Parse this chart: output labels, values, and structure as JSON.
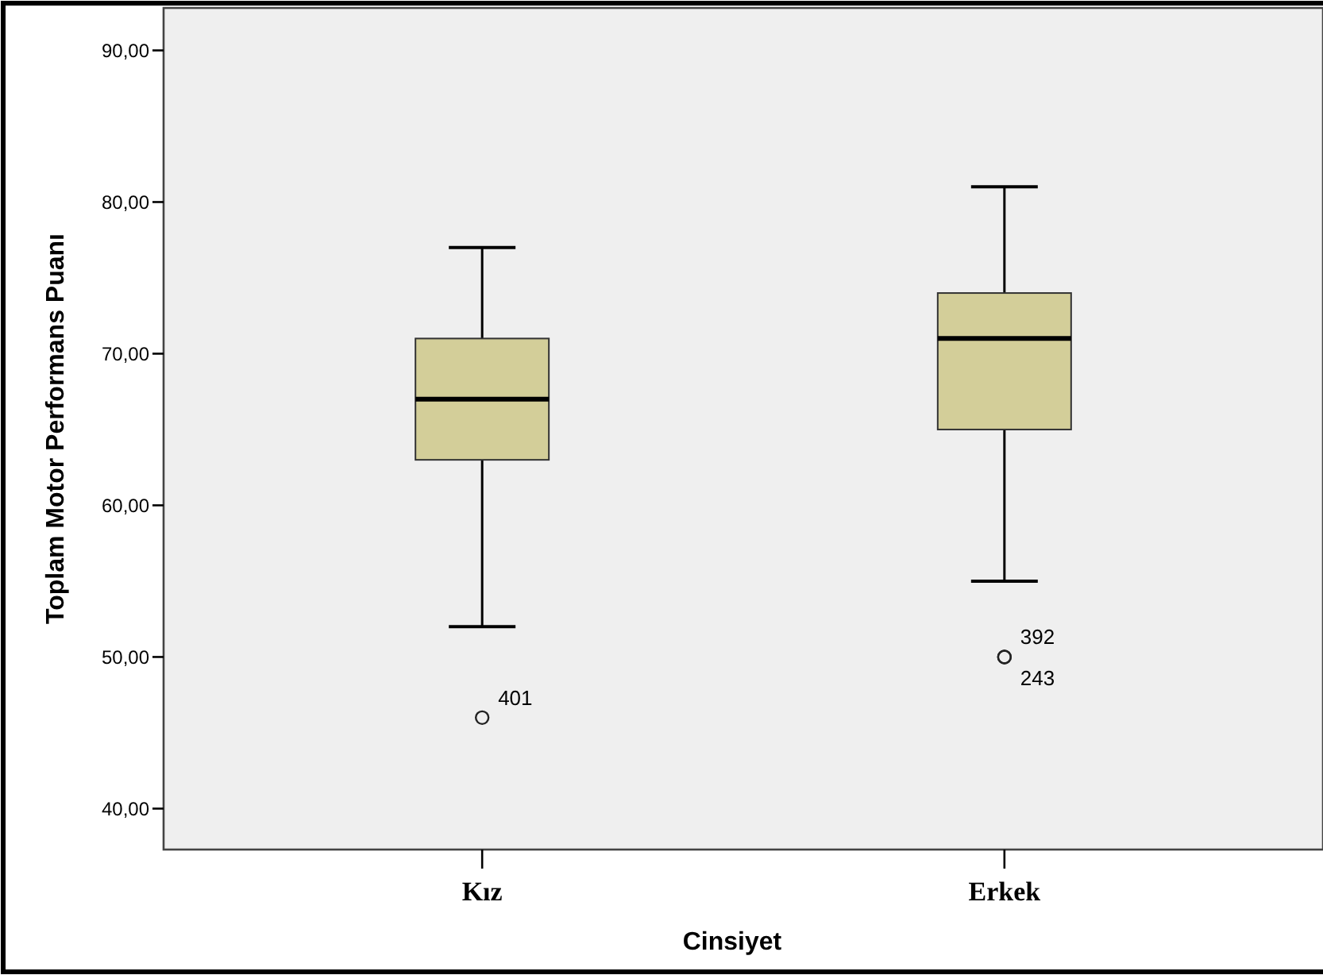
{
  "chart_data": {
    "type": "box",
    "xlabel": "Cinsiyet",
    "ylabel": "Toplam Motor Performans Puanı",
    "categories": [
      "Kız",
      "Erkek"
    ],
    "boxes": [
      {
        "low": 52,
        "q1": 63,
        "median": 67,
        "q3": 71,
        "high": 77,
        "outliers": [
          46
        ]
      },
      {
        "low": 55,
        "q1": 65,
        "median": 71,
        "q3": 74,
        "high": 81,
        "outliers": [
          50,
          50
        ]
      }
    ],
    "color": "#d3ce99",
    "ylim": [
      37.3,
      92.8
    ],
    "yticks": [
      {
        "value": 40,
        "label": "40,00"
      },
      {
        "value": 50,
        "label": "50,00"
      },
      {
        "value": 60,
        "label": "60,00"
      },
      {
        "value": 70,
        "label": "70,00"
      },
      {
        "value": 80,
        "label": "80,00"
      },
      {
        "value": 90,
        "label": "90,00"
      }
    ],
    "annotations": [
      "401",
      "392",
      "243"
    ]
  }
}
